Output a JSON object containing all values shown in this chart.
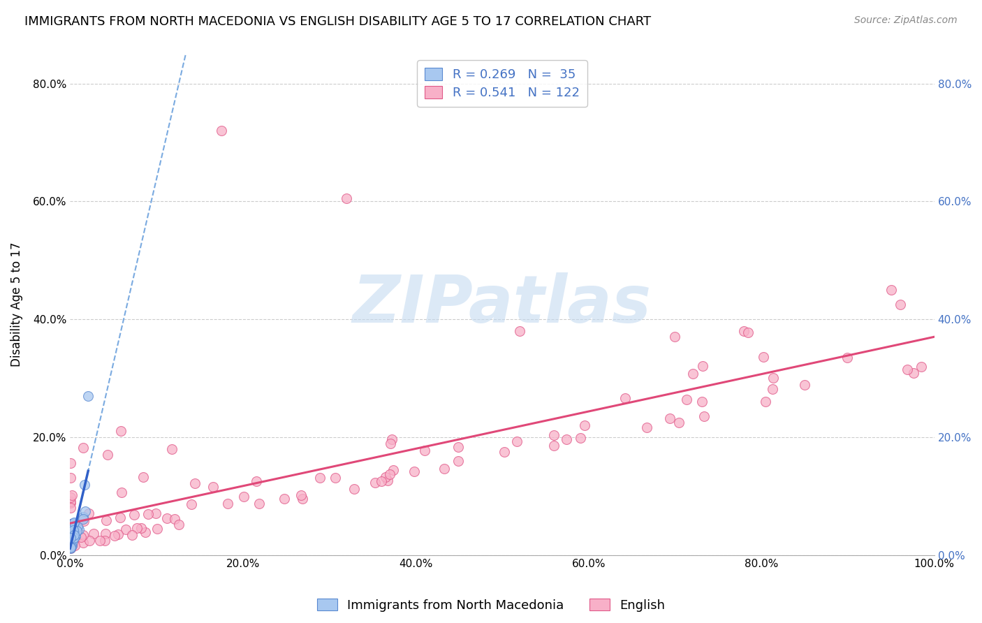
{
  "title": "IMMIGRANTS FROM NORTH MACEDONIA VS ENGLISH DISABILITY AGE 5 TO 17 CORRELATION CHART",
  "source": "Source: ZipAtlas.com",
  "ylabel": "Disability Age 5 to 17",
  "legend_blue_label": "Immigrants from North Macedonia",
  "legend_pink_label": "English",
  "R_blue": 0.269,
  "N_blue": 35,
  "R_pink": 0.541,
  "N_pink": 122,
  "blue_scatter_color": "#A8C8F0",
  "blue_edge_color": "#5888D0",
  "blue_line_color": "#3060C8",
  "blue_dash_color": "#7AAAE0",
  "pink_scatter_color": "#F8B0C8",
  "pink_edge_color": "#E05888",
  "pink_line_color": "#E04878",
  "grid_color": "#CCCCCC",
  "watermark": "ZIPatlas",
  "watermark_color": "#C0D8F0",
  "xlim": [
    0.0,
    1.0
  ],
  "ylim": [
    0.0,
    0.85
  ],
  "yticks": [
    0.0,
    0.2,
    0.4,
    0.6,
    0.8
  ],
  "ytick_labels": [
    "0.0%",
    "20.0%",
    "40.0%",
    "60.0%",
    "80.0%"
  ],
  "xticks": [
    0.0,
    0.2,
    0.4,
    0.6,
    0.8,
    1.0
  ],
  "xtick_labels": [
    "0.0%",
    "20.0%",
    "40.0%",
    "60.0%",
    "80.0%",
    "100.0%"
  ],
  "title_fontsize": 13,
  "legend_fontsize": 13,
  "tick_fontsize": 11,
  "source_fontsize": 10,
  "right_tick_color": "#4472C4"
}
